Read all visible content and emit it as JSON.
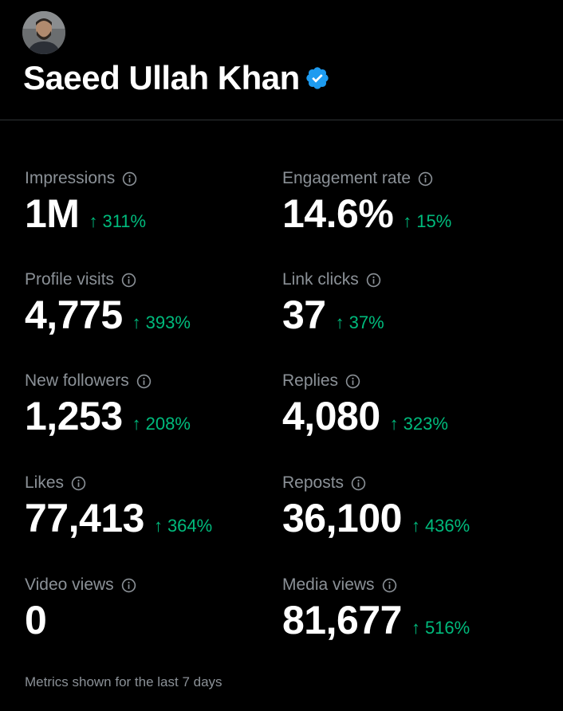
{
  "profile": {
    "display_name": "Saeed Ullah Khan",
    "verified": true
  },
  "colors": {
    "background": "#000000",
    "label": "#8b9197",
    "value": "#ffffff",
    "positive": "#00ba7c",
    "verified_badge": "#1d9bf0"
  },
  "icons": {
    "info": "info-circle-icon",
    "trend": "arrow-up-icon",
    "verified": "verified-badge-icon"
  },
  "metrics": [
    {
      "label": "Impressions",
      "value": "1M",
      "change": "311%"
    },
    {
      "label": "Engagement rate",
      "value": "14.6%",
      "change": "15%"
    },
    {
      "label": "Profile visits",
      "value": "4,775",
      "change": "393%"
    },
    {
      "label": "Link clicks",
      "value": "37",
      "change": "37%"
    },
    {
      "label": "New followers",
      "value": "1,253",
      "change": "208%"
    },
    {
      "label": "Replies",
      "value": "4,080",
      "change": "323%"
    },
    {
      "label": "Likes",
      "value": "77,413",
      "change": "364%"
    },
    {
      "label": "Reposts",
      "value": "36,100",
      "change": "436%"
    },
    {
      "label": "Video views",
      "value": "0",
      "change": ""
    },
    {
      "label": "Media views",
      "value": "81,677",
      "change": "516%"
    }
  ],
  "arrow_glyph": "↑",
  "footer": {
    "note": "Metrics shown for the last 7 days"
  }
}
